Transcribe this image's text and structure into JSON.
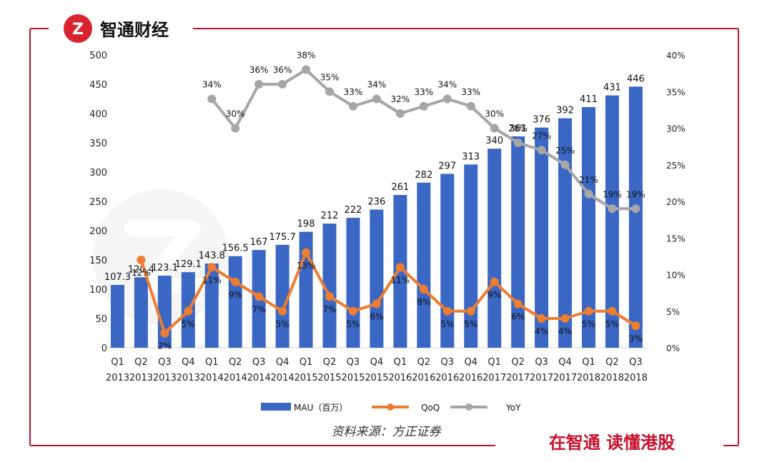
{
  "brand": {
    "name": "智通财经",
    "logo_letter": "Z",
    "slogan": "在智通 读懂港股",
    "color": "#d9232e"
  },
  "source": "资料来源：方正证券",
  "colors": {
    "bar": "#3a66c4",
    "qoq": "#ed7d31",
    "yoy": "#a6a6a6",
    "border": "#c8102e",
    "axis_text": "#222222"
  },
  "chart_data": {
    "type": "bar-line-combo",
    "categories": [
      [
        "Q1",
        "2013"
      ],
      [
        "Q2",
        "2013"
      ],
      [
        "Q3",
        "2013"
      ],
      [
        "Q4",
        "2013"
      ],
      [
        "Q1",
        "2014"
      ],
      [
        "Q2",
        "2014"
      ],
      [
        "Q3",
        "2014"
      ],
      [
        "Q4",
        "2014"
      ],
      [
        "Q1",
        "2015"
      ],
      [
        "Q2",
        "2015"
      ],
      [
        "Q3",
        "2015"
      ],
      [
        "Q4",
        "2015"
      ],
      [
        "Q1",
        "2016"
      ],
      [
        "Q2",
        "2016"
      ],
      [
        "Q3",
        "2016"
      ],
      [
        "Q4",
        "2016"
      ],
      [
        "Q1",
        "2017"
      ],
      [
        "Q2",
        "2017"
      ],
      [
        "Q3",
        "2017"
      ],
      [
        "Q4",
        "2017"
      ],
      [
        "Q1",
        "2018"
      ],
      [
        "Q2",
        "2018"
      ],
      [
        "Q3",
        "2018"
      ]
    ],
    "left_axis": {
      "min": 0,
      "max": 500,
      "step": 50,
      "ticks": [
        "0",
        "50",
        "100",
        "150",
        "200",
        "250",
        "300",
        "350",
        "400",
        "450",
        "500"
      ]
    },
    "right_axis": {
      "min": 0,
      "max": 40,
      "step": 5,
      "ticks": [
        "0%",
        "5%",
        "10%",
        "15%",
        "20%",
        "25%",
        "30%",
        "35%",
        "40%"
      ]
    },
    "series": [
      {
        "name": "MAU（百万）",
        "type": "bar",
        "axis": "left",
        "values": [
          107.3,
          120.4,
          123.1,
          129.1,
          143.8,
          156.5,
          167,
          175.7,
          198,
          212,
          222,
          236,
          261,
          282,
          297,
          313,
          340,
          361,
          376,
          392,
          411,
          431,
          446
        ],
        "labels": [
          "107.3",
          "120.4",
          "123.1",
          "129.1",
          "143.8",
          "156.5",
          "167",
          "175.7",
          "198",
          "212",
          "222",
          "236",
          "261",
          "282",
          "297",
          "313",
          "340",
          "361",
          "376",
          "392",
          "411",
          "431",
          "446"
        ]
      },
      {
        "name": "QoQ",
        "type": "line",
        "axis": "right",
        "values": [
          null,
          12,
          2,
          5,
          11,
          9,
          7,
          5,
          13,
          7,
          5,
          6,
          11,
          8,
          5,
          5,
          9,
          6,
          4,
          4,
          5,
          5,
          3
        ],
        "labels": [
          "",
          "12%",
          "2%",
          "5%",
          "11%",
          "9%",
          "7%",
          "5%",
          "13%",
          "7%",
          "5%",
          "6%",
          "11%",
          "8%",
          "5%",
          "5%",
          "9%",
          "6%",
          "4%",
          "4%",
          "5%",
          "5%",
          "3%"
        ]
      },
      {
        "name": "YoY",
        "type": "line",
        "axis": "right",
        "values": [
          null,
          null,
          null,
          null,
          34,
          30,
          36,
          36,
          38,
          35,
          33,
          34,
          32,
          33,
          34,
          33,
          30,
          28,
          27,
          25,
          21,
          19,
          19
        ],
        "labels": [
          "",
          "",
          "",
          "",
          "34%",
          "30%",
          "36%",
          "36%",
          "38%",
          "35%",
          "33%",
          "34%",
          "32%",
          "33%",
          "34%",
          "33%",
          "30%",
          "28%",
          "27%",
          "25%",
          "21%",
          "19%",
          "19%"
        ]
      }
    ],
    "legend": [
      "MAU（百万）",
      "QoQ",
      "YoY"
    ]
  }
}
